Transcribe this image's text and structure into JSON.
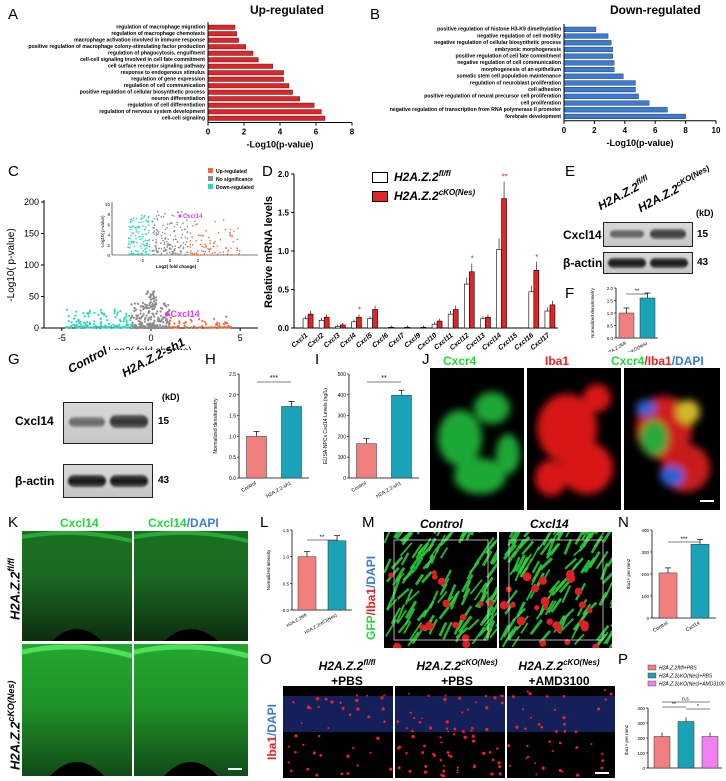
{
  "panels": {
    "A": "A",
    "B": "B",
    "C": "C",
    "D": "D",
    "E": "E",
    "F": "F",
    "G": "G",
    "H": "H",
    "I": "I",
    "J": "J",
    "K": "K",
    "L": "L",
    "M": "M",
    "N": "N",
    "O": "O",
    "P": "P"
  },
  "colors": {
    "red": "#e42326",
    "blue": "#3a7bd5",
    "salmon": "#f08080",
    "teal": "#1aa2b8",
    "green": "#22d83a",
    "magenta": "#e040e0"
  },
  "chart_data": [
    {
      "id": "A",
      "type": "bar",
      "orientation": "horizontal",
      "title": "Up-regulated",
      "xlabel": "-Log10(p-value)",
      "xlim": [
        0,
        8
      ],
      "xticks": [
        "0",
        "2",
        "4",
        "6",
        "8"
      ],
      "categories": [
        "regulation of macrophage migration",
        "regulation of macrophage chemotaxis",
        "macrophage activation involved in immune response",
        "positive regulation of macrophage colony-stimulating factor production",
        "regulation of phagocytosis, engulfment",
        "cell-cell signaling involved in cell fate commitment",
        "cell surface receptor signaling pathway",
        "response to endogenous stimulus",
        "regulation of gene expression",
        "regulation of cell communication",
        "positive regulation of cellular biosynthetic process",
        "neuron differentiation",
        "regulation of cell differentiation",
        "regulation of nervous system development",
        "cell-cell signaling"
      ],
      "values": [
        1.5,
        1.6,
        1.7,
        2.1,
        2.5,
        2.8,
        3.6,
        4.2,
        4.2,
        4.5,
        4.7,
        5.1,
        5.9,
        6.3,
        6.5
      ],
      "color": "#e42326"
    },
    {
      "id": "B",
      "type": "bar",
      "orientation": "horizontal",
      "title": "Down-regulated",
      "xlabel": "-Log10(p-value)",
      "xlim": [
        0,
        10
      ],
      "xticks": [
        "0",
        "2",
        "4",
        "6",
        "8",
        "10"
      ],
      "categories": [
        "positive regulation of histone H3-K9 dimethylation",
        "negative regulation of cell motility",
        "negative regulation of cellular biosynthetic process",
        "embryonic morphogenesis",
        "positive regulation of cell fate commitment",
        "negative regulation of cell communication",
        "morphogenesis of an epithelium",
        "somatic stem cell population maintenance",
        "regulation of neuroblast proliferation",
        "cell adhesion",
        "positive regulation of neural precursor cell proliferation",
        "cell proliferation",
        "negative regulation of transcription from RNA polymerase II promoter",
        "forebrain development"
      ],
      "values": [
        2.1,
        2.9,
        3.1,
        3.2,
        3.2,
        3.3,
        3.3,
        3.9,
        4.7,
        4.7,
        4.9,
        5.6,
        6.8,
        8.0
      ],
      "color": "#3a7bd5"
    },
    {
      "id": "C",
      "type": "scatter",
      "xlabel": "Log2( fold change)",
      "ylabel": "-Log10( p-value)",
      "xlim": [
        -6,
        6
      ],
      "ylim": [
        0,
        200
      ],
      "xticks": [
        "-5",
        "0",
        "5"
      ],
      "yticks": [
        "0",
        "50",
        "100",
        "150",
        "200"
      ],
      "legend": [
        "Up-regulated",
        "No significance",
        "Down-regulated"
      ],
      "legend_colors": [
        "#f06a3c",
        "#8c8c8c",
        "#2fd6b8"
      ],
      "highlight": "Cxcl14",
      "inset": {
        "ylabel": "-Log10( p-value)",
        "xlabel": "Log2( fold change)",
        "yticks": [
          "0",
          "2",
          "4",
          "6",
          "8",
          "10"
        ],
        "xticks": [
          "-2",
          "0",
          "2"
        ],
        "highlight": "Cxcl14"
      }
    },
    {
      "id": "D",
      "type": "bar",
      "ylabel": "Relative mRNA levels",
      "ylim": [
        0,
        2.0
      ],
      "yticks": [
        "0.0",
        "0.5",
        "1.0",
        "1.5",
        "2.0"
      ],
      "categories": [
        "Cxcl1",
        "Cxcl2",
        "Cxcl3",
        "Cxcl4",
        "Cxcl5",
        "Cxcl6",
        "Cxcl7",
        "Cxcl9",
        "Cxcl10",
        "Cxcl11",
        "Cxcl12",
        "Cxcl13",
        "Cxcl14",
        "Cxcl15",
        "Cxcl16",
        "Cxcl17"
      ],
      "series": [
        {
          "name": "H2A.Z.2fl/fl",
          "values": [
            0.12,
            0.1,
            0.02,
            0.08,
            0.12,
            0.0,
            0.0,
            0.0,
            0.05,
            0.18,
            0.57,
            0.12,
            1.02,
            0.0,
            0.47,
            0.22
          ],
          "color": "#ffffff"
        },
        {
          "name": "H2A.Z.2cKO(Nes)",
          "values": [
            0.18,
            0.14,
            0.04,
            0.14,
            0.24,
            0.01,
            0.01,
            0.01,
            0.09,
            0.24,
            0.73,
            0.14,
            1.68,
            0.0,
            0.75,
            0.3
          ],
          "color": "#e42326"
        }
      ],
      "significance": [
        "",
        "",
        "",
        "*",
        "",
        "",
        "",
        "",
        "",
        "",
        "*",
        "",
        "**",
        "",
        "*",
        ""
      ]
    },
    {
      "id": "F",
      "type": "bar",
      "ylabel": "Normalized densitometry",
      "ylim": [
        0,
        2.0
      ],
      "yticks": [
        "0.0",
        "0.5",
        "1.0",
        "1.5",
        "2.0"
      ],
      "categories": [
        "H2A.Z.2fl/fl",
        "H2A.Z.2cKO(Nes)"
      ],
      "values": [
        1.0,
        1.6
      ],
      "significance": "**"
    },
    {
      "id": "H",
      "type": "bar",
      "ylabel": "Normalized densitometry",
      "ylim": [
        0,
        2.5
      ],
      "yticks": [
        "0.0",
        "0.5",
        "1.0",
        "1.5",
        "2.0",
        "2.5"
      ],
      "categories": [
        "Control",
        "H2A.Z.2-sh1"
      ],
      "values": [
        1.0,
        1.72
      ],
      "significance": "***"
    },
    {
      "id": "I",
      "type": "bar",
      "ylabel": "ELISA-NPCs Cxcl14 Levels (ng/L)",
      "ylim": [
        0,
        500
      ],
      "yticks": [
        "0",
        "100",
        "200",
        "300",
        "400",
        "500"
      ],
      "categories": [
        "Control",
        "H2A.Z.2-sh1"
      ],
      "values": [
        165,
        398
      ],
      "significance": "**"
    },
    {
      "id": "L",
      "type": "bar",
      "ylabel": "Normalized intensity",
      "ylim": [
        0,
        1.5
      ],
      "yticks": [
        "0.0",
        "0.5",
        "1.0",
        "1.5"
      ],
      "categories": [
        "H2A.Z.2fl/fl",
        "H2A.Z.2cKO(Nes)"
      ],
      "values": [
        1.0,
        1.3
      ],
      "significance": "**"
    },
    {
      "id": "N",
      "type": "bar",
      "ylabel": "Iba1+ per mm2",
      "ylim": [
        0,
        400
      ],
      "yticks": [
        "0",
        "100",
        "200",
        "300",
        "400"
      ],
      "categories": [
        "Control",
        "Cxcl14"
      ],
      "values": [
        205,
        335
      ],
      "significance": "***"
    },
    {
      "id": "P",
      "type": "bar",
      "ylabel": "Iba1+ per mm2",
      "ylim": [
        0,
        400
      ],
      "yticks": [
        "0",
        "100",
        "200",
        "300",
        "400"
      ],
      "categories": [
        "H2A.Z.2fl/fl+PBS",
        "H2A.Z.2cKO(Nes)+PBS",
        "H2A.Z.2cKO(Nes)+AMD3100"
      ],
      "values": [
        210,
        310,
        210
      ],
      "significance": [
        "**",
        "*",
        "n.s."
      ]
    }
  ],
  "E": {
    "col1": "H2A.Z.2",
    "col1_sup": "fl/fl",
    "col2": "H2A.Z.2",
    "col2_sup": "cKO(Nes)",
    "kd": "(kD)",
    "row1": "Cxcl14",
    "row1_kd": "15",
    "row2": "β-actin",
    "row2_kd": "43"
  },
  "G": {
    "col1": "Control",
    "col2": "H2A.Z.2-sh1",
    "row1": "Cxcl14",
    "row1_kd": "15",
    "row2": "β-actin",
    "row2_kd": "43",
    "kd": "(kD)"
  },
  "D_legend": [
    {
      "label": "H2A.Z.2",
      "sup": "fl/fl"
    },
    {
      "label": "H2A.Z.2",
      "sup": "cKO(Nes)"
    }
  ],
  "J": {
    "ch1": "Cxcr4",
    "ch2": "Iba1",
    "ch3a": "Cxcr4",
    "ch3b": "/Iba1",
    "ch3c": "/DAPI"
  },
  "K": {
    "col1": "Cxcl14",
    "col2a": "Cxcl14",
    "col2b": "/DAPI",
    "row1": "H2A.Z.2",
    "row1_sup": "fl/fl",
    "row2": "H2A.Z.2",
    "row2_sup": "cKO(Nes)"
  },
  "M": {
    "col1": "Control",
    "col2": "Cxcl14",
    "ylab_a": "GFP",
    "ylab_b": "/Iba1",
    "ylab_c": "/DAPI"
  },
  "O": {
    "ylab_a": "Iba1",
    "ylab_b": "/DAPI",
    "col1": "H2A.Z.2",
    "col1_sup": "fl/fl",
    "col1_b": "+PBS",
    "col2": "H2A.Z.2",
    "col2_sup": "cKO(Nes)",
    "col2_b": "+PBS",
    "col3": "H2A.Z.2",
    "col3_sup": "cKO(Nes)",
    "col3_b": "+AMD3100"
  },
  "icons": [
    "scale-bar-icon"
  ]
}
